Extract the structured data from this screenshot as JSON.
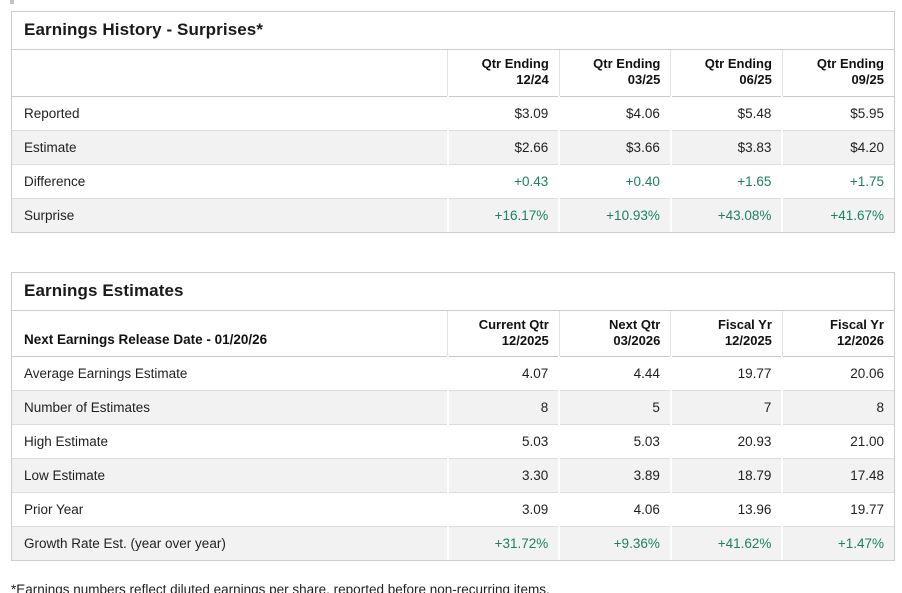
{
  "colors": {
    "positive_value": "#1d8065",
    "stripe_row": "#f2f2f2",
    "panel_border": "#cccccc"
  },
  "earnings_history": {
    "title": "Earnings History - Surprises*",
    "columns": [
      {
        "line1": "Qtr Ending",
        "line2": "12/24"
      },
      {
        "line1": "Qtr Ending",
        "line2": "03/25"
      },
      {
        "line1": "Qtr Ending",
        "line2": "06/25"
      },
      {
        "line1": "Qtr Ending",
        "line2": "09/25"
      }
    ],
    "rows": [
      {
        "label": "Reported",
        "values": [
          "$3.09",
          "$4.06",
          "$5.48",
          "$5.95"
        ]
      },
      {
        "label": "Estimate",
        "values": [
          "$2.66",
          "$3.66",
          "$3.83",
          "$4.20"
        ]
      },
      {
        "label": "Difference",
        "values": [
          "+0.43",
          "+0.40",
          "+1.65",
          "+1.75"
        ]
      },
      {
        "label": "Surprise",
        "values": [
          "+16.17%",
          "+10.93%",
          "+43.08%",
          "+41.67%"
        ]
      }
    ]
  },
  "earnings_estimates": {
    "title": "Earnings Estimates",
    "row_header_label": "Next Earnings Release Date - 01/20/26",
    "columns": [
      {
        "line1": "Current Qtr",
        "line2": "12/2025"
      },
      {
        "line1": "Next Qtr",
        "line2": "03/2026"
      },
      {
        "line1": "Fiscal Yr",
        "line2": "12/2025"
      },
      {
        "line1": "Fiscal Yr",
        "line2": "12/2026"
      }
    ],
    "rows": [
      {
        "label": "Average Earnings Estimate",
        "values": [
          "4.07",
          "4.44",
          "19.77",
          "20.06"
        ]
      },
      {
        "label": "Number of Estimates",
        "values": [
          "8",
          "5",
          "7",
          "8"
        ]
      },
      {
        "label": "High Estimate",
        "values": [
          "5.03",
          "5.03",
          "20.93",
          "21.00"
        ]
      },
      {
        "label": "Low Estimate",
        "values": [
          "3.30",
          "3.89",
          "18.79",
          "17.48"
        ]
      },
      {
        "label": "Prior Year",
        "values": [
          "3.09",
          "4.06",
          "13.96",
          "19.77"
        ]
      },
      {
        "label": "Growth Rate Est. (year over year)",
        "values": [
          "+31.72%",
          "+9.36%",
          "+41.62%",
          "+1.47%"
        ]
      }
    ]
  },
  "footnote": "*Earnings numbers reflect diluted earnings per share, reported before non-recurring items."
}
